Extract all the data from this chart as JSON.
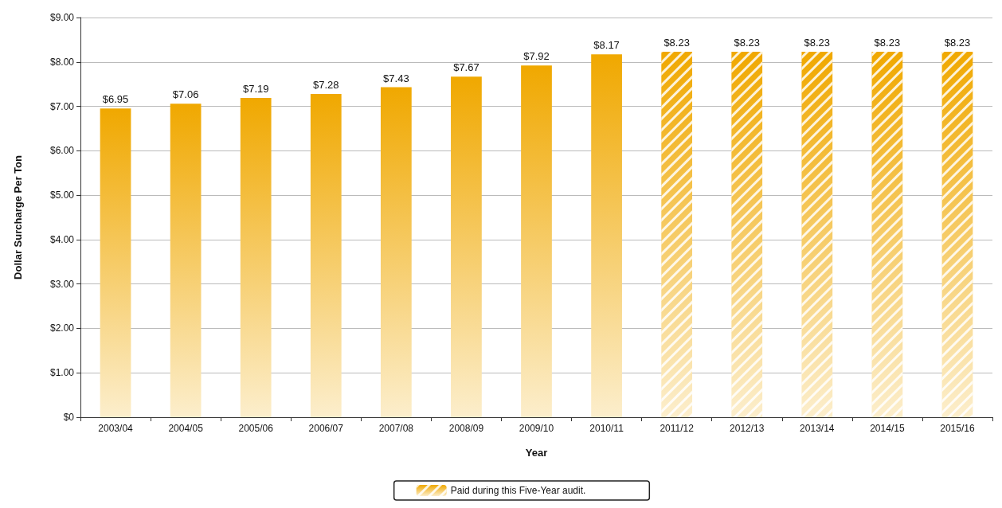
{
  "chart_data": {
    "type": "bar",
    "xlabel": "Year",
    "ylabel": "Dollar Surcharge Per Ton",
    "categories": [
      "2003/04",
      "2004/05",
      "2005/06",
      "2006/07",
      "2007/08",
      "2008/09",
      "2009/10",
      "2010/11",
      "2011/12",
      "2012/13",
      "2013/14",
      "2014/15",
      "2015/16"
    ],
    "series": [
      {
        "color": "#f0a800",
        "values": [
          6.95,
          7.06,
          7.19,
          7.28,
          7.43,
          7.67,
          7.92,
          8.17,
          null,
          null,
          null,
          null,
          null
        ],
        "value_labels": [
          "$6.95",
          "$7.06",
          "$7.19",
          "$7.28",
          "$7.43",
          "$7.67",
          "$7.92",
          "$8.17",
          null,
          null,
          null,
          null,
          null
        ]
      },
      {
        "name": "Paid during this Five-Year audit.",
        "color": "#f0a800",
        "values": [
          null,
          null,
          null,
          null,
          null,
          null,
          null,
          null,
          8.23,
          8.23,
          8.23,
          8.23,
          8.23
        ],
        "value_labels": [
          null,
          null,
          null,
          null,
          null,
          null,
          null,
          null,
          "$8.23",
          "$8.23",
          "$8.23",
          "$8.23",
          "$8.23"
        ]
      }
    ],
    "ylim": [
      0,
      9
    ],
    "yticks": [
      {
        "value": 0,
        "label": "$0"
      },
      {
        "value": 1,
        "label": "$1.00"
      },
      {
        "value": 2,
        "label": "$2.00"
      },
      {
        "value": 3,
        "label": "$3.00"
      },
      {
        "value": 4,
        "label": "$4.00"
      },
      {
        "value": 5,
        "label": "$5.00"
      },
      {
        "value": 6,
        "label": "$6.00"
      },
      {
        "value": 7,
        "label": "$7.00"
      },
      {
        "value": 8,
        "label": "$8.00"
      },
      {
        "value": 9,
        "label": "$9.00"
      }
    ],
    "grid": "y",
    "legend": "bottom"
  }
}
